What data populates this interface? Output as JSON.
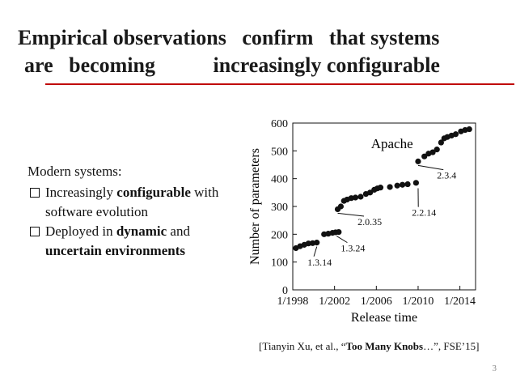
{
  "slide": {
    "title_line1": "Empirical observations   confirm   that systems",
    "title_line2": "are   becoming           increasingly configurable",
    "lead": "Modern systems:",
    "bullet1_pre": "Increasingly ",
    "bullet1_bold": "configurable",
    "bullet1_post": " with software evolution",
    "bullet2_pre": "Deployed in ",
    "bullet2_bold": "dynamic",
    "bullet2_mid": " and ",
    "bullet2_bold2": "uncertain environments",
    "cite_pre": "[Tianyin Xu, et al., “",
    "cite_bold": "Too Many Knobs",
    "cite_post": "…”, FSE’15]",
    "page_number": "3",
    "colors": {
      "accent_rule": "#c00000",
      "marker": "#111111"
    }
  },
  "chart_data": {
    "type": "scatter",
    "title": "Apache",
    "xlabel": "Release time",
    "ylabel": "Number of parameters",
    "xlim": [
      1998,
      2015.5
    ],
    "ylim": [
      0,
      600
    ],
    "x_ticks": [
      1998,
      2002,
      2006,
      2010,
      2014
    ],
    "x_tick_labels": [
      "1/1998",
      "1/2002",
      "1/2006",
      "1/2010",
      "1/2014"
    ],
    "y_ticks": [
      0,
      100,
      200,
      300,
      400,
      500,
      600
    ],
    "y_tick_labels": [
      "0",
      "100",
      "200",
      "300",
      "400",
      "500",
      "600"
    ],
    "grid": false,
    "series": [
      {
        "points": [
          [
            1998.3,
            150
          ],
          [
            1998.7,
            157
          ],
          [
            1999.1,
            162
          ],
          [
            1999.5,
            167
          ],
          [
            1999.9,
            168
          ],
          [
            2000.3,
            170
          ],
          [
            2001.0,
            200
          ],
          [
            2001.4,
            202
          ],
          [
            2001.8,
            205
          ],
          [
            2002.1,
            207
          ],
          [
            2002.4,
            208
          ],
          [
            2002.3,
            290
          ],
          [
            2002.6,
            300
          ],
          [
            2002.9,
            320
          ],
          [
            2003.2,
            325
          ],
          [
            2003.6,
            330
          ],
          [
            2004.0,
            332
          ],
          [
            2004.5,
            335
          ],
          [
            2005.0,
            345
          ],
          [
            2005.4,
            350
          ],
          [
            2005.8,
            360
          ],
          [
            2006.1,
            365
          ],
          [
            2006.4,
            368
          ],
          [
            2007.3,
            370
          ],
          [
            2008.0,
            375
          ],
          [
            2008.5,
            378
          ],
          [
            2009.0,
            380
          ],
          [
            2009.8,
            385
          ],
          [
            2010.0,
            462
          ],
          [
            2010.6,
            480
          ],
          [
            2011.0,
            490
          ],
          [
            2011.4,
            495
          ],
          [
            2011.8,
            505
          ],
          [
            2012.2,
            530
          ],
          [
            2012.5,
            545
          ],
          [
            2012.8,
            550
          ],
          [
            2013.2,
            555
          ],
          [
            2013.6,
            560
          ],
          [
            2014.1,
            570
          ],
          [
            2014.5,
            575
          ],
          [
            2014.9,
            578
          ]
        ]
      }
    ],
    "annotations": [
      {
        "text": "1.3.14",
        "x": 2000.3,
        "y": 170,
        "label_x": 1999.4,
        "label_y": 88
      },
      {
        "text": "1.3.24",
        "x": 2002.2,
        "y": 208,
        "label_x": 2002.6,
        "label_y": 138
      },
      {
        "text": "2.0.35",
        "x": 2002.3,
        "y": 290,
        "label_x": 2004.2,
        "label_y": 233
      },
      {
        "text": "2.2.14",
        "x": 2010.0,
        "y": 380,
        "label_x": 2009.4,
        "label_y": 266
      },
      {
        "text": "2.3.4",
        "x": 2010.0,
        "y": 462,
        "label_x": 2011.8,
        "label_y": 400
      }
    ]
  }
}
